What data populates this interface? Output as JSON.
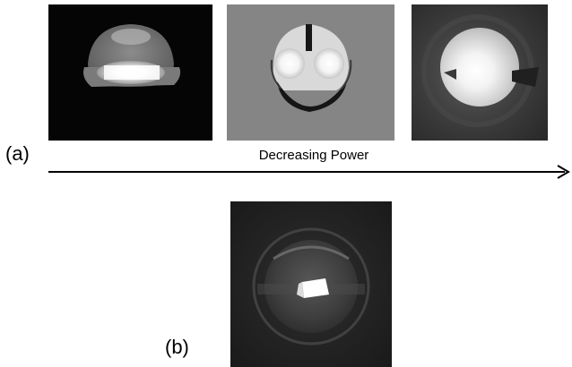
{
  "panel_a": {
    "label": "(a)",
    "arrow_caption": "Decreasing Power",
    "images": [
      "high-power-droplet",
      "medium-power-droplet",
      "low-power-droplet"
    ]
  },
  "panel_b": {
    "label": "(b)",
    "images": [
      "droplet-detail"
    ]
  },
  "colors": {
    "background": "#ffffff",
    "text": "#000000",
    "arrow": "#000000"
  }
}
